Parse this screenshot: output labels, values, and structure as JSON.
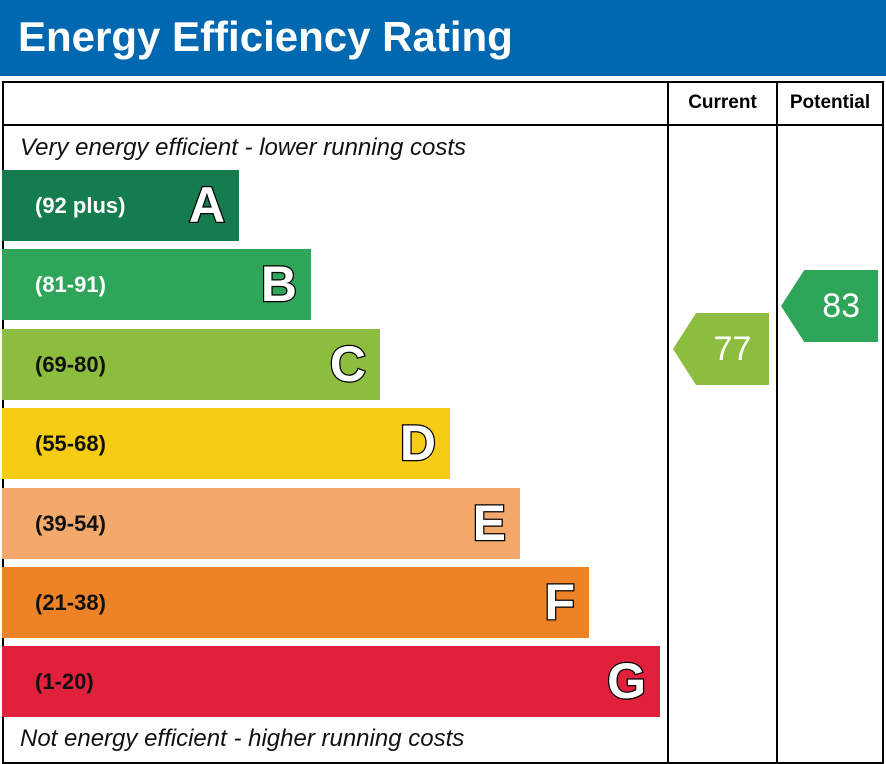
{
  "header": {
    "title": "Energy Efficiency Rating"
  },
  "columns": {
    "current": "Current",
    "potential": "Potential"
  },
  "notes": {
    "top": "Very energy efficient - lower running costs",
    "bottom": "Not energy efficient - higher running costs"
  },
  "bands": [
    {
      "letter": "A",
      "range": "(92 plus)",
      "color": "#147c4d",
      "text_color": "#ffffff"
    },
    {
      "letter": "B",
      "range": "(81-91)",
      "color": "#2ea558",
      "text_color": "#ffffff"
    },
    {
      "letter": "C",
      "range": "(69-80)",
      "color": "#8cbd3f",
      "text_color": "#111111"
    },
    {
      "letter": "D",
      "range": "(55-68)",
      "color": "#f6cd14",
      "text_color": "#111111"
    },
    {
      "letter": "E",
      "range": "(39-54)",
      "color": "#f2a96b",
      "text_color": "#111111"
    },
    {
      "letter": "F",
      "range": "(21-38)",
      "color": "#ed8226",
      "text_color": "#111111"
    },
    {
      "letter": "G",
      "range": "(1-20)",
      "color": "#e1213c",
      "text_color": "#111111"
    }
  ],
  "ratings": {
    "current": {
      "value": "77",
      "color": "#8cbd3f"
    },
    "potential": {
      "value": "83",
      "color": "#2ea558"
    }
  }
}
